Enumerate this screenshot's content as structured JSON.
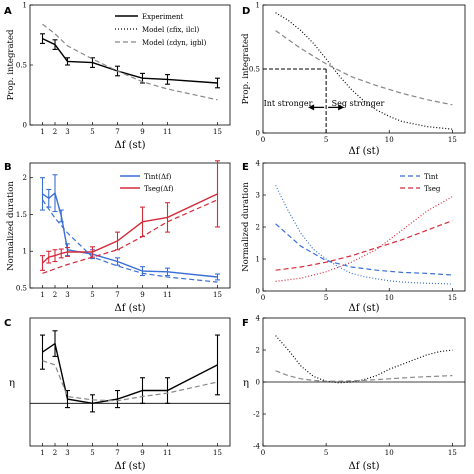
{
  "chart_data": [
    {
      "panel": "A",
      "type": "line",
      "xlabel": "Δf (st)",
      "ylabel": "Prop. integrated",
      "xlim": [
        0,
        16
      ],
      "ylim": [
        0,
        1
      ],
      "xticks": [
        "1",
        "2",
        "3",
        "5",
        "7",
        "9",
        "11",
        "15"
      ],
      "yticks": [
        "0",
        "0.5",
        "1"
      ],
      "legend": [
        "Experiment",
        "Model (εfix, ilcl)",
        "Model (εdyn, igbl)"
      ],
      "series": [
        {
          "name": "Experiment",
          "style": "solid-errorbar",
          "color": "#000000",
          "x": [
            1,
            2,
            3,
            5,
            7,
            9,
            11,
            15
          ],
          "y": [
            0.72,
            0.67,
            0.53,
            0.52,
            0.45,
            0.39,
            0.38,
            0.35
          ],
          "err": [
            0.04,
            0.04,
            0.03,
            0.04,
            0.04,
            0.04,
            0.04,
            0.04
          ]
        },
        {
          "name": "Model (εdyn, igbl)",
          "style": "dashed",
          "color": "#888888",
          "x": [
            1,
            2,
            3,
            5,
            7,
            9,
            11,
            15
          ],
          "y": [
            0.84,
            0.76,
            0.66,
            0.55,
            0.45,
            0.36,
            0.3,
            0.21
          ]
        }
      ]
    },
    {
      "panel": "B",
      "type": "line",
      "xlabel": "Δf (st)",
      "ylabel": "Normalized duration",
      "xlim": [
        0,
        16
      ],
      "ylim": [
        0.5,
        2.2
      ],
      "xticks": [
        "1",
        "2",
        "3",
        "5",
        "7",
        "9",
        "11",
        "15"
      ],
      "yticks": [
        "0.5",
        "1",
        "1.5",
        "2"
      ],
      "legend": [
        "Tint(Δf)",
        "Tseg(Δf)"
      ],
      "series": [
        {
          "name": "Tint(Δf)",
          "style": "solid-errorbar",
          "color": "#3a6fd6",
          "x": [
            1,
            1.5,
            2,
            2.5,
            3,
            5,
            7,
            9,
            11,
            15
          ],
          "y": [
            1.78,
            1.72,
            1.79,
            1.48,
            1.02,
            0.96,
            0.86,
            0.73,
            0.72,
            0.65
          ],
          "err": [
            0.22,
            0.12,
            0.25,
            0.08,
            0.08,
            0.06,
            0.05,
            0.06,
            0.05,
            0.04
          ]
        },
        {
          "name": "Tseg(Δf)",
          "style": "solid-errorbar",
          "color": "#d62b3b",
          "x": [
            1,
            1.5,
            2,
            2.5,
            3,
            5,
            7,
            9,
            11,
            15
          ],
          "y": [
            0.84,
            0.92,
            0.94,
            0.97,
            0.99,
            0.99,
            1.14,
            1.4,
            1.46,
            1.78
          ],
          "err": [
            0.1,
            0.08,
            0.08,
            0.06,
            0.06,
            0.07,
            0.12,
            0.2,
            0.2,
            0.45
          ]
        },
        {
          "name": "Tint model",
          "style": "dashed",
          "color": "#3a6fd6",
          "x": [
            1,
            2,
            3,
            5,
            7,
            9,
            11,
            15
          ],
          "y": [
            1.7,
            1.45,
            1.25,
            0.92,
            0.8,
            0.7,
            0.65,
            0.58
          ]
        },
        {
          "name": "Tseg model",
          "style": "dashed",
          "color": "#d62b3b",
          "x": [
            1,
            2,
            3,
            5,
            7,
            9,
            11,
            15
          ],
          "y": [
            0.7,
            0.76,
            0.82,
            0.92,
            1.02,
            1.2,
            1.4,
            1.7
          ]
        }
      ]
    },
    {
      "panel": "C",
      "type": "line",
      "xlabel": "Δf (st)",
      "ylabel": "η",
      "xlim": [
        0,
        16
      ],
      "ylim": [
        -0.5,
        1.0
      ],
      "xticks": [
        "1",
        "2",
        "3",
        "5",
        "7",
        "9",
        "11",
        "15"
      ],
      "yticks": [],
      "series": [
        {
          "name": "Experiment",
          "style": "solid-errorbar",
          "color": "#000000",
          "x": [
            1,
            2,
            3,
            5,
            7,
            9,
            11,
            15
          ],
          "y": [
            0.6,
            0.7,
            0.05,
            0.0,
            0.05,
            0.15,
            0.15,
            0.45
          ],
          "err": [
            0.2,
            0.15,
            0.1,
            0.1,
            0.1,
            0.15,
            0.15,
            0.35
          ]
        },
        {
          "name": "Model",
          "style": "dashed",
          "color": "#888888",
          "x": [
            1,
            2,
            3,
            5,
            7,
            9,
            11,
            15
          ],
          "y": [
            0.5,
            0.45,
            0.08,
            0.04,
            0.03,
            0.08,
            0.12,
            0.25
          ]
        }
      ],
      "hline": 0
    },
    {
      "panel": "D",
      "type": "line",
      "xlabel": "Δf (st)",
      "ylabel": "Prop. integrated",
      "xlim": [
        0,
        16
      ],
      "ylim": [
        0,
        1
      ],
      "xticks": [
        "0",
        "5",
        "10",
        "15"
      ],
      "yticks": [
        "0",
        "0.5",
        "1"
      ],
      "annotations": [
        "Int stronger",
        "Seg stronger"
      ],
      "series": [
        {
          "name": "dotted",
          "style": "dotted",
          "color": "#000000",
          "x": [
            1,
            2,
            3,
            4,
            5,
            6,
            7,
            8,
            9,
            10,
            11,
            12,
            13,
            14,
            15
          ],
          "y": [
            0.94,
            0.88,
            0.8,
            0.7,
            0.58,
            0.45,
            0.34,
            0.25,
            0.18,
            0.13,
            0.09,
            0.07,
            0.05,
            0.04,
            0.03
          ]
        },
        {
          "name": "dashed",
          "style": "dashed",
          "color": "#888888",
          "x": [
            1,
            3,
            5,
            7,
            9,
            11,
            13,
            15
          ],
          "y": [
            0.8,
            0.66,
            0.54,
            0.44,
            0.37,
            0.31,
            0.26,
            0.22
          ]
        }
      ]
    },
    {
      "panel": "E",
      "type": "line",
      "xlabel": "Δf (st)",
      "ylabel": "Normalized duration",
      "xlim": [
        0,
        16
      ],
      "ylim": [
        0,
        4
      ],
      "xticks": [
        "0",
        "5",
        "10",
        "15"
      ],
      "yticks": [
        "0",
        "1",
        "2",
        "3",
        "4"
      ],
      "legend": [
        "Tint",
        "Tseg"
      ],
      "series": [
        {
          "name": "Tint dotted",
          "style": "dotted",
          "color": "#3a6fd6",
          "x": [
            1,
            2,
            3,
            4,
            5,
            6,
            7,
            8,
            9,
            10,
            11,
            12,
            13,
            14,
            15
          ],
          "y": [
            3.3,
            2.5,
            1.8,
            1.3,
            1.0,
            0.75,
            0.55,
            0.45,
            0.38,
            0.32,
            0.28,
            0.26,
            0.24,
            0.23,
            0.22
          ]
        },
        {
          "name": "Tint dashed",
          "style": "dashed",
          "color": "#3a6fd6",
          "x": [
            1,
            3,
            5,
            7,
            9,
            11,
            13,
            15
          ],
          "y": [
            2.1,
            1.4,
            0.95,
            0.75,
            0.65,
            0.58,
            0.55,
            0.5
          ]
        },
        {
          "name": "Tseg dotted",
          "style": "dotted",
          "color": "#d62b3b",
          "x": [
            1,
            3,
            5,
            7,
            9,
            11,
            13,
            15
          ],
          "y": [
            0.3,
            0.4,
            0.6,
            0.9,
            1.3,
            1.9,
            2.5,
            2.95
          ]
        },
        {
          "name": "Tseg dashed",
          "style": "dashed",
          "color": "#d62b3b",
          "x": [
            1,
            3,
            5,
            7,
            9,
            11,
            13,
            15
          ],
          "y": [
            0.65,
            0.75,
            0.9,
            1.1,
            1.35,
            1.6,
            1.9,
            2.2
          ]
        }
      ]
    },
    {
      "panel": "F",
      "type": "line",
      "xlabel": "Δf (st)",
      "ylabel": "η",
      "xlim": [
        0,
        16
      ],
      "ylim": [
        -4,
        4
      ],
      "xticks": [
        "0",
        "5",
        "10",
        "15"
      ],
      "yticks": [
        "-4",
        "-2",
        "0",
        "2",
        "4"
      ],
      "series": [
        {
          "name": "dotted",
          "style": "dotted",
          "color": "#000000",
          "x": [
            1,
            2,
            3,
            4,
            5,
            6,
            7,
            8,
            9,
            10,
            11,
            12,
            13,
            14,
            15
          ],
          "y": [
            2.9,
            2.0,
            1.0,
            0.35,
            0.05,
            -0.05,
            0.0,
            0.15,
            0.4,
            0.8,
            1.1,
            1.4,
            1.7,
            1.9,
            2.0
          ]
        },
        {
          "name": "dashed",
          "style": "dashed",
          "color": "#888888",
          "x": [
            1,
            2,
            3,
            4,
            5,
            6,
            8,
            10,
            12,
            15
          ],
          "y": [
            0.7,
            0.4,
            0.2,
            0.1,
            0.05,
            0.05,
            0.1,
            0.2,
            0.3,
            0.4
          ]
        }
      ],
      "hline": 0
    }
  ]
}
